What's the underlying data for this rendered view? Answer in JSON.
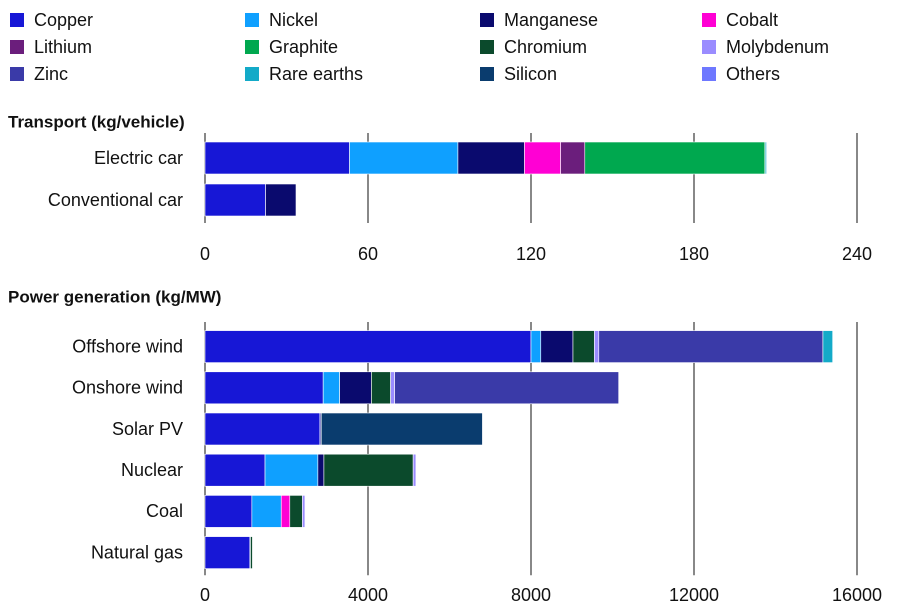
{
  "chart_data": [
    {
      "type": "bar",
      "orientation": "horizontal",
      "stacked": true,
      "title": "Transport (kg/vehicle)",
      "categories": [
        "Electric car",
        "Conventional car"
      ],
      "xlim": [
        0,
        240
      ],
      "xticks": [
        0,
        60,
        120,
        180,
        240
      ],
      "grid": true,
      "series": [
        {
          "name": "Copper",
          "color": "#1717d6",
          "values": [
            53.2,
            22.3
          ]
        },
        {
          "name": "Nickel",
          "color": "#0fa0ff",
          "values": [
            39.9,
            null
          ]
        },
        {
          "name": "Manganese",
          "color": "#0a0a6e",
          "values": [
            24.5,
            11.2
          ]
        },
        {
          "name": "Cobalt",
          "color": "#ff00d4",
          "values": [
            13.3,
            null
          ]
        },
        {
          "name": "Lithium",
          "color": "#6b1e7c",
          "values": [
            8.9,
            null
          ]
        },
        {
          "name": "Graphite",
          "color": "#00a84f",
          "values": [
            66.3,
            null
          ]
        },
        {
          "name": "Chromium",
          "color": "#0b4a2c",
          "values": [
            null,
            null
          ]
        },
        {
          "name": "Molybdenum",
          "color": "#9a8cff",
          "values": [
            null,
            null
          ]
        },
        {
          "name": "Zinc",
          "color": "#3a3aa8",
          "values": [
            0.1,
            null
          ]
        },
        {
          "name": "Rare earths",
          "color": "#13aac8",
          "values": [
            0.5,
            null
          ]
        },
        {
          "name": "Silicon",
          "color": "#0a3c6e",
          "values": [
            null,
            null
          ]
        },
        {
          "name": "Others",
          "color": "#6e78ff",
          "values": [
            null,
            null
          ]
        }
      ]
    },
    {
      "type": "bar",
      "orientation": "horizontal",
      "stacked": true,
      "title": "Power generation (kg/MW)",
      "categories": [
        "Offshore wind",
        "Onshore wind",
        "Solar PV",
        "Nuclear",
        "Coal",
        "Natural gas"
      ],
      "xlim": [
        0,
        16000
      ],
      "xticks": [
        0,
        4000,
        8000,
        12000,
        16000
      ],
      "grid": true,
      "series": [
        {
          "name": "Copper",
          "color": "#1717d6",
          "values": [
            8000,
            2900,
            2822,
            1473,
            1150,
            1100
          ]
        },
        {
          "name": "Nickel",
          "color": "#0fa0ff",
          "values": [
            240,
            404,
            1,
            1297,
            721,
            16
          ]
        },
        {
          "name": "Manganese",
          "color": "#0a0a6e",
          "values": [
            790,
            780,
            null,
            148,
            null,
            null
          ]
        },
        {
          "name": "Cobalt",
          "color": "#ff00d4",
          "values": [
            null,
            null,
            null,
            null,
            210,
            null
          ]
        },
        {
          "name": "Lithium",
          "color": "#6b1e7c",
          "values": [
            null,
            null,
            null,
            null,
            null,
            null
          ]
        },
        {
          "name": "Graphite",
          "color": "#00a84f",
          "values": [
            null,
            null,
            null,
            null,
            null,
            null
          ]
        },
        {
          "name": "Chromium",
          "color": "#0b4a2c",
          "values": [
            525,
            470,
            null,
            2190,
            308,
            48
          ]
        },
        {
          "name": "Molybdenum",
          "color": "#9a8cff",
          "values": [
            109,
            99,
            null,
            70,
            66,
            null
          ]
        },
        {
          "name": "Zinc",
          "color": "#3a3aa8",
          "values": [
            5500,
            5500,
            30,
            null,
            null,
            null
          ]
        },
        {
          "name": "Rare earths",
          "color": "#13aac8",
          "values": [
            239,
            14,
            null,
            null,
            null,
            null
          ]
        },
        {
          "name": "Silicon",
          "color": "#0a3c6e",
          "values": [
            null,
            null,
            3955,
            null,
            null,
            null
          ]
        },
        {
          "name": "Others",
          "color": "#6e78ff",
          "values": [
            null,
            null,
            null,
            12,
            12,
            null
          ]
        }
      ]
    }
  ]
}
